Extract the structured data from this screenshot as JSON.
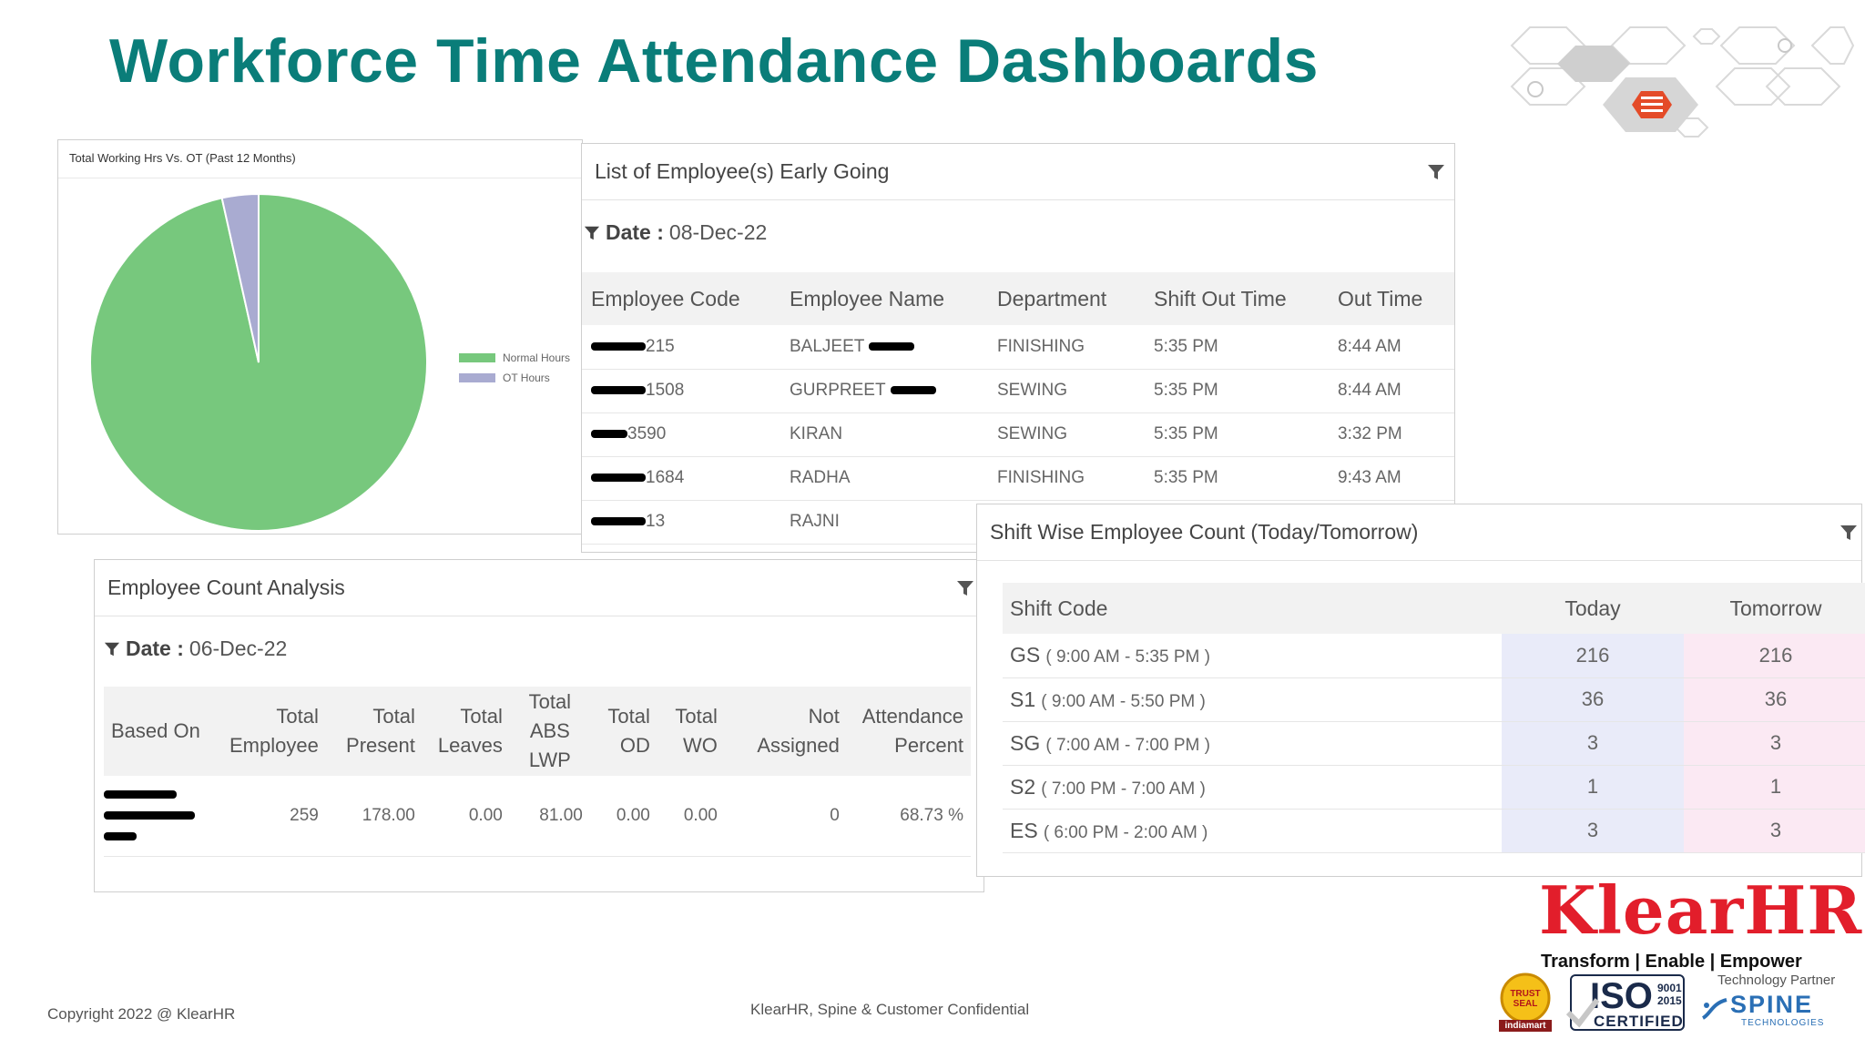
{
  "title": "Workforce Time Attendance Dashboards",
  "colors": {
    "title": "#0a7d79",
    "normal": "#77c87d",
    "ot": "#a9abd1",
    "brand_red": "#e21e2b"
  },
  "pie_panel": {
    "title": "Total Working Hrs Vs. OT (Past 12 Months)",
    "legend": [
      "Normal Hours",
      "OT Hours"
    ]
  },
  "chart_data": {
    "type": "pie",
    "title": "Total Working Hrs Vs. OT (Past 12 Months)",
    "categories": [
      "Normal Hours",
      "OT Hours"
    ],
    "values": [
      96.5,
      3.5
    ],
    "colors": [
      "#77c87d",
      "#a9abd1"
    ],
    "legend": "right"
  },
  "early_going": {
    "title": "List of Employee(s) Early Going",
    "filter_label": "Date :",
    "filter_value": "08-Dec-22",
    "headers": [
      "Employee Code",
      "Employee Name",
      "Department",
      "Shift Out Time",
      "Out Time"
    ],
    "rows": [
      {
        "code": "215",
        "name": "BALJEET",
        "dept": "FINISHING",
        "shift_out": "5:35 PM",
        "out": "8:44 AM"
      },
      {
        "code": "1508",
        "name": "GURPREET",
        "dept": "SEWING",
        "shift_out": "5:35 PM",
        "out": "8:44 AM"
      },
      {
        "code": "3590",
        "name": "KIRAN",
        "dept": "SEWING",
        "shift_out": "5:35 PM",
        "out": "3:32 PM"
      },
      {
        "code": "1684",
        "name": "RADHA",
        "dept": "FINISHING",
        "shift_out": "5:35 PM",
        "out": "9:43 AM"
      },
      {
        "code": "13",
        "name": "RAJNI",
        "dept": "",
        "shift_out": "",
        "out": ""
      }
    ]
  },
  "eca": {
    "title": "Employee Count Analysis",
    "filter_label": "Date :",
    "filter_value": "06-Dec-22",
    "headers": [
      {
        "l1": "Based On",
        "l2": "",
        "l3": ""
      },
      {
        "l1": "Total",
        "l2": "Employee",
        "l3": ""
      },
      {
        "l1": "Total",
        "l2": "Present",
        "l3": ""
      },
      {
        "l1": "Total",
        "l2": "Leaves",
        "l3": ""
      },
      {
        "l1": "Total",
        "l2": "ABS",
        "l3": "LWP"
      },
      {
        "l1": "Total",
        "l2": "OD",
        "l3": ""
      },
      {
        "l1": "Total",
        "l2": "WO",
        "l3": ""
      },
      {
        "l1": "Not",
        "l2": "Assigned",
        "l3": ""
      },
      {
        "l1": "Attendance",
        "l2": "Percent",
        "l3": ""
      }
    ],
    "row": {
      "total_employee": "259",
      "total_present": "178.00",
      "total_leaves": "0.00",
      "total_abs_lwp": "81.00",
      "total_od": "0.00",
      "total_wo": "0.00",
      "not_assigned": "0",
      "attendance_percent": "68.73 %"
    }
  },
  "shift": {
    "title": "Shift Wise Employee Count (Today/Tomorrow)",
    "headers": [
      "Shift Code",
      "Today",
      "Tomorrow"
    ],
    "rows": [
      {
        "code": "GS",
        "time": "( 9:00 AM - 5:35 PM )",
        "today": "216",
        "tomorrow": "216"
      },
      {
        "code": "S1",
        "time": "( 9:00 AM - 5:50 PM )",
        "today": "36",
        "tomorrow": "36"
      },
      {
        "code": "SG",
        "time": "( 7:00 AM - 7:00 PM )",
        "today": "3",
        "tomorrow": "3"
      },
      {
        "code": "S2",
        "time": "( 7:00 PM - 7:00 AM )",
        "today": "1",
        "tomorrow": "1"
      },
      {
        "code": "ES",
        "time": "( 6:00 PM - 2:00 AM )",
        "today": "3",
        "tomorrow": "3"
      }
    ]
  },
  "footer": {
    "copyright": "Copyright 2022 @ KlearHR",
    "confidential": "KlearHR, Spine & Customer Confidential"
  },
  "branding": {
    "logo": "KlearHR",
    "tagline": "Transform | Enable | Empower",
    "tech_partner": "Technology Partner",
    "partner_logo": "SPINE",
    "partner_sub": "TECHNOLOGIES",
    "iso": "ISO",
    "iso_num": "9001",
    "iso_year": "2015",
    "iso_certified": "CERTIFIED",
    "trust_seal": "TRUST SEAL",
    "trust_by": "indiamart"
  }
}
